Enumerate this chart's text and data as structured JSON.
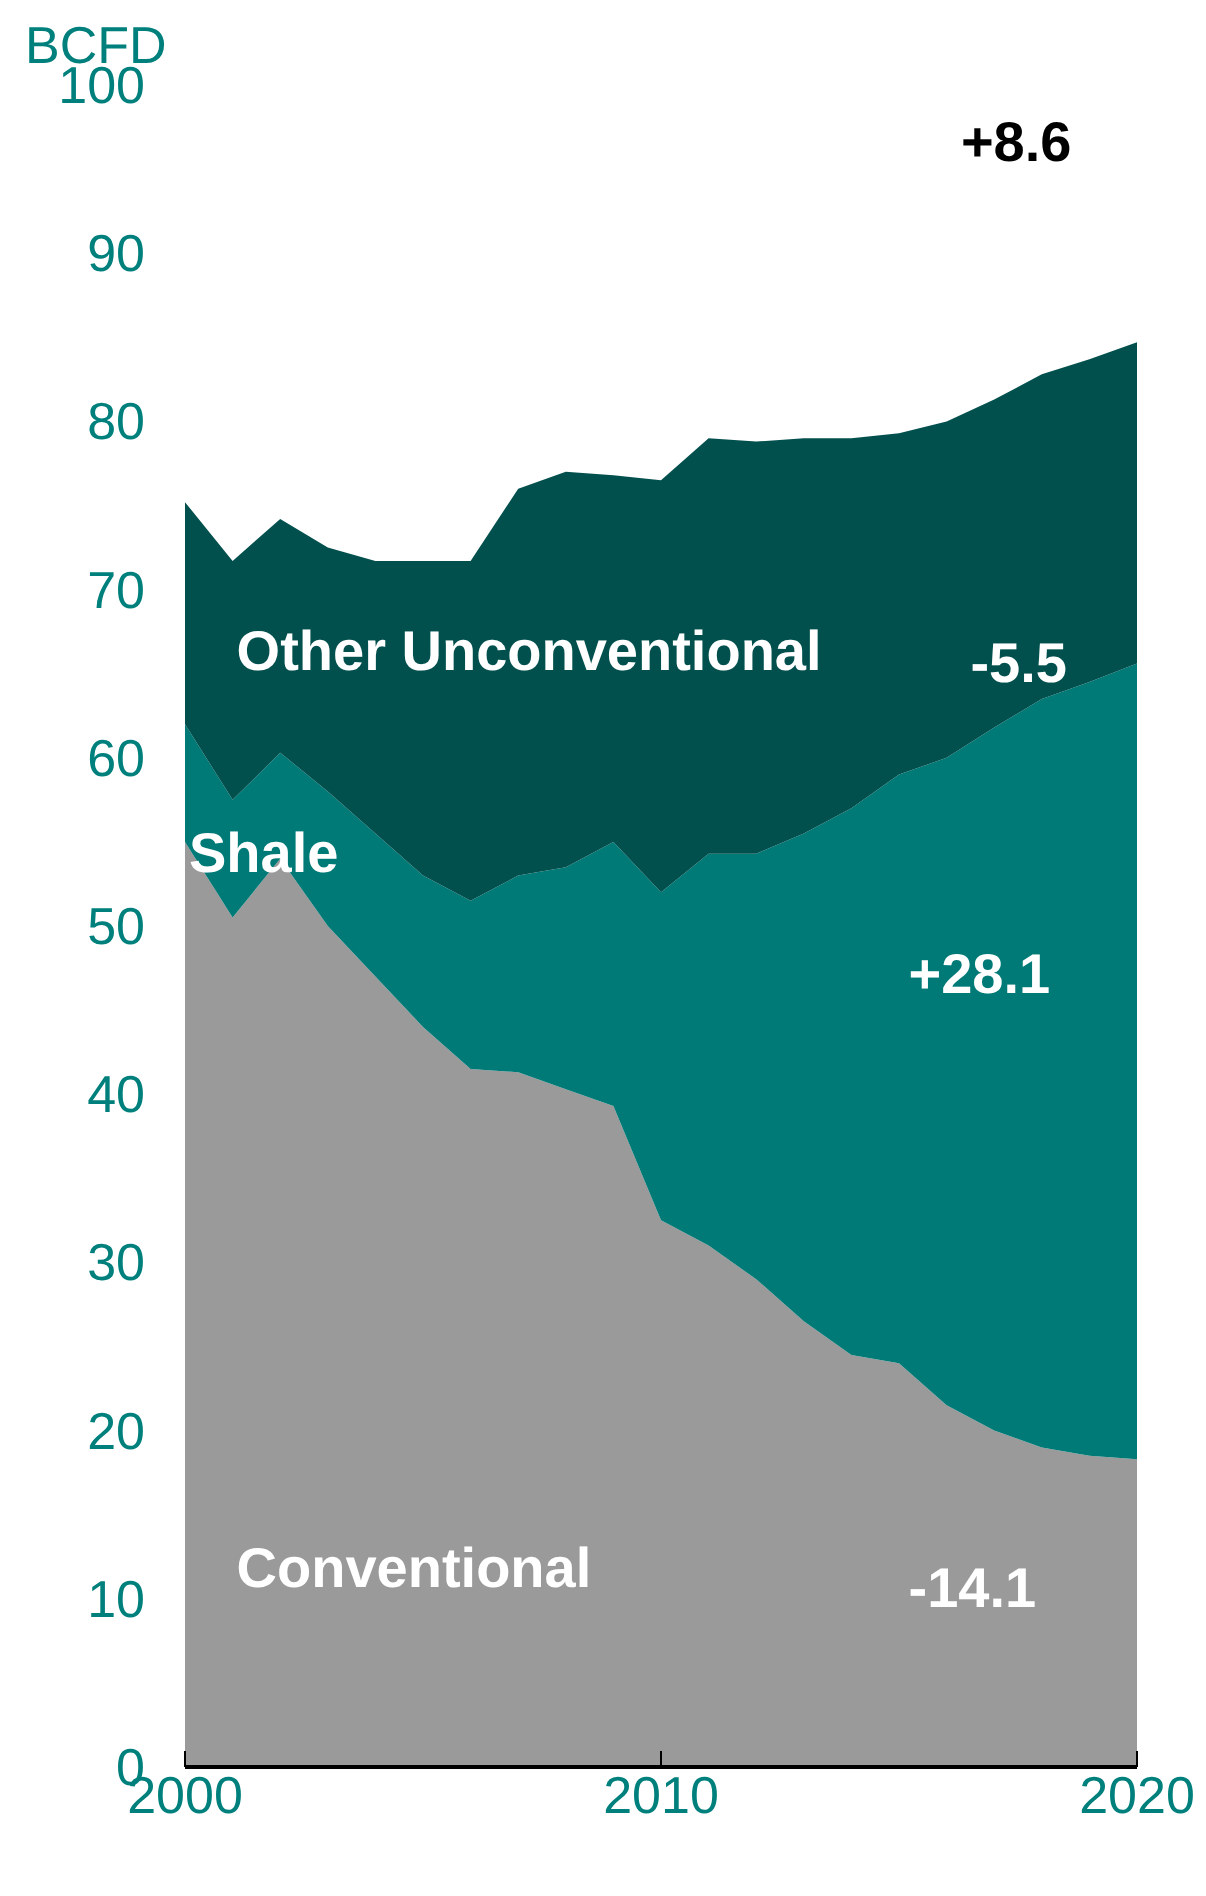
{
  "chart_data": {
    "type": "area",
    "stacked": true,
    "ylabel": "BCFD",
    "x": [
      2000,
      2001,
      2002,
      2003,
      2004,
      2005,
      2006,
      2007,
      2008,
      2009,
      2010,
      2011,
      2012,
      2013,
      2014,
      2015,
      2016,
      2017,
      2018,
      2019,
      2020
    ],
    "series": [
      {
        "name": "Conventional",
        "color": "#9a9a9a",
        "values": [
          55,
          50.5,
          54,
          50,
          47,
          44,
          41.5,
          41.3,
          40.3,
          39.3,
          32.5,
          31,
          29,
          26.5,
          24.5,
          24,
          21.5,
          20,
          19,
          18.5,
          18.3
        ]
      },
      {
        "name": "Shale",
        "color": "#007a77",
        "values": [
          7,
          7,
          6.3,
          8,
          8.5,
          9,
          10,
          11.7,
          13.2,
          15.7,
          19.5,
          23.3,
          25.3,
          29,
          32.5,
          35,
          38.5,
          41.8,
          44.5,
          46,
          47.3
        ]
      },
      {
        "name": "Other Unconventional",
        "color": "#02504e",
        "values": [
          13.2,
          14.2,
          13.9,
          14.5,
          16.2,
          18.7,
          20.2,
          23,
          23.5,
          21.8,
          24.5,
          24.7,
          24.5,
          23.5,
          22,
          20.3,
          20,
          19.5,
          19.3,
          19.2,
          19.1
        ]
      }
    ],
    "annotations": [
      "+8.6",
      "-5.5",
      "+28.1",
      "-14.1"
    ],
    "xlim": [
      2000,
      2020
    ],
    "xticks": [
      2000,
      2010,
      2020
    ],
    "ylim": [
      0,
      100
    ],
    "yticks": [
      0,
      10,
      20,
      30,
      40,
      50,
      60,
      70,
      80,
      90,
      100
    ],
    "grid": false
  }
}
